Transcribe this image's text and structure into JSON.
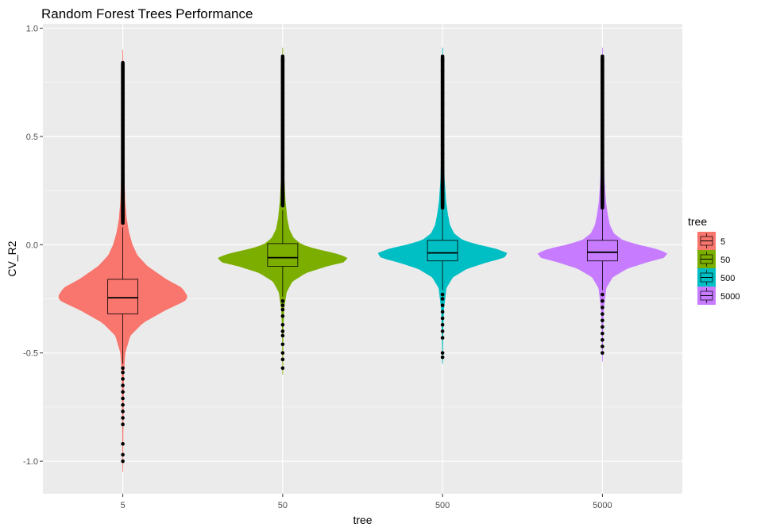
{
  "chart_data": {
    "type": "violin",
    "title": "Random Forest Trees Performance",
    "xlabel": "tree",
    "ylabel": "CV_R2",
    "ylim": [
      -1.15,
      1.02
    ],
    "yticks": [
      -1.0,
      -0.5,
      0.0,
      0.5,
      1.0
    ],
    "ytick_labels": [
      "-1.0",
      "-0.5",
      "0.0",
      "0.5",
      "1.0"
    ],
    "categories": [
      "5",
      "50",
      "500",
      "5000"
    ],
    "grid": true,
    "legend": {
      "title": "tree",
      "placement": "right",
      "entries": [
        "5",
        "50",
        "500",
        "5000"
      ]
    },
    "series": [
      {
        "category": "5",
        "color": "#F8766D",
        "min": -1.05,
        "max": 0.9,
        "whisker_low": -0.55,
        "q1": -0.32,
        "median": -0.245,
        "q3": -0.16,
        "whisker_high": 0.08,
        "density_y": [
          -1.05,
          -0.8,
          -0.6,
          -0.5,
          -0.42,
          -0.36,
          -0.3,
          -0.26,
          -0.24,
          -0.2,
          -0.16,
          -0.1,
          -0.05,
          0.0,
          0.06,
          0.12,
          0.2,
          0.35,
          0.6,
          0.9
        ],
        "density_w": [
          0.0,
          0.004,
          0.01,
          0.03,
          0.1,
          0.28,
          0.6,
          0.86,
          0.9,
          0.82,
          0.6,
          0.34,
          0.2,
          0.13,
          0.08,
          0.05,
          0.03,
          0.014,
          0.006,
          0.0
        ],
        "outliers": [
          -1.0,
          -0.97,
          -0.92,
          -0.83,
          -0.8,
          -0.77,
          -0.74,
          -0.71,
          -0.68,
          -0.65,
          -0.62,
          -0.59,
          -0.57,
          0.1,
          0.13,
          0.16,
          0.2,
          0.24,
          0.28,
          0.32,
          0.36,
          0.4,
          0.45,
          0.5,
          0.55,
          0.6,
          0.65,
          0.7,
          0.75,
          0.8,
          0.84
        ]
      },
      {
        "category": "50",
        "color": "#7CAE00",
        "min": -0.6,
        "max": 0.91,
        "whisker_low": -0.24,
        "q1": -0.1,
        "median": -0.06,
        "q3": 0.005,
        "whisker_high": 0.16,
        "density_y": [
          -0.6,
          -0.4,
          -0.3,
          -0.22,
          -0.17,
          -0.13,
          -0.1,
          -0.08,
          -0.06,
          -0.04,
          -0.02,
          0.0,
          0.03,
          0.07,
          0.12,
          0.2,
          0.3,
          0.4,
          0.6,
          0.91
        ],
        "density_w": [
          0.0,
          0.004,
          0.015,
          0.05,
          0.13,
          0.32,
          0.6,
          0.85,
          0.9,
          0.72,
          0.45,
          0.26,
          0.15,
          0.09,
          0.06,
          0.035,
          0.02,
          0.01,
          0.004,
          0.0
        ],
        "outliers": [
          -0.57,
          -0.53,
          -0.5,
          -0.46,
          -0.42,
          -0.4,
          -0.37,
          -0.33,
          -0.3,
          -0.28,
          -0.26,
          0.18,
          0.21,
          0.24,
          0.28,
          0.32,
          0.36,
          0.4,
          0.45,
          0.5,
          0.55,
          0.6,
          0.65,
          0.7,
          0.75,
          0.8,
          0.85,
          0.87
        ]
      },
      {
        "category": "500",
        "color": "#00BFC4",
        "min": -0.55,
        "max": 0.91,
        "whisker_low": -0.21,
        "q1": -0.075,
        "median": -0.038,
        "q3": 0.02,
        "whisker_high": 0.16,
        "density_y": [
          -0.55,
          -0.4,
          -0.3,
          -0.2,
          -0.15,
          -0.11,
          -0.08,
          -0.06,
          -0.04,
          -0.02,
          0.0,
          0.02,
          0.05,
          0.09,
          0.14,
          0.2,
          0.3,
          0.45,
          0.6,
          0.91
        ],
        "density_w": [
          0.0,
          0.004,
          0.015,
          0.05,
          0.14,
          0.34,
          0.62,
          0.85,
          0.9,
          0.74,
          0.48,
          0.28,
          0.16,
          0.1,
          0.07,
          0.045,
          0.025,
          0.012,
          0.005,
          0.0
        ],
        "outliers": [
          -0.52,
          -0.5,
          -0.43,
          -0.4,
          -0.37,
          -0.34,
          -0.31,
          -0.28,
          -0.25,
          -0.23,
          0.17,
          0.2,
          0.23,
          0.27,
          0.3,
          0.34,
          0.38,
          0.42,
          0.46,
          0.5,
          0.55,
          0.6,
          0.65,
          0.7,
          0.75,
          0.8,
          0.85,
          0.87
        ]
      },
      {
        "category": "5000",
        "color": "#C77CFF",
        "min": -0.54,
        "max": 0.91,
        "whisker_low": -0.21,
        "q1": -0.075,
        "median": -0.035,
        "q3": 0.02,
        "whisker_high": 0.16,
        "density_y": [
          -0.54,
          -0.4,
          -0.3,
          -0.2,
          -0.15,
          -0.11,
          -0.08,
          -0.06,
          -0.04,
          -0.02,
          0.0,
          0.02,
          0.05,
          0.09,
          0.14,
          0.2,
          0.3,
          0.45,
          0.6,
          0.91
        ],
        "density_w": [
          0.0,
          0.004,
          0.015,
          0.05,
          0.14,
          0.34,
          0.62,
          0.85,
          0.9,
          0.74,
          0.48,
          0.28,
          0.16,
          0.1,
          0.07,
          0.045,
          0.025,
          0.012,
          0.005,
          0.0
        ],
        "outliers": [
          -0.5,
          -0.47,
          -0.44,
          -0.41,
          -0.38,
          -0.35,
          -0.32,
          -0.29,
          -0.26,
          -0.23,
          0.17,
          0.2,
          0.23,
          0.27,
          0.3,
          0.34,
          0.38,
          0.42,
          0.46,
          0.5,
          0.55,
          0.6,
          0.65,
          0.7,
          0.75,
          0.8,
          0.85,
          0.87
        ]
      }
    ]
  }
}
